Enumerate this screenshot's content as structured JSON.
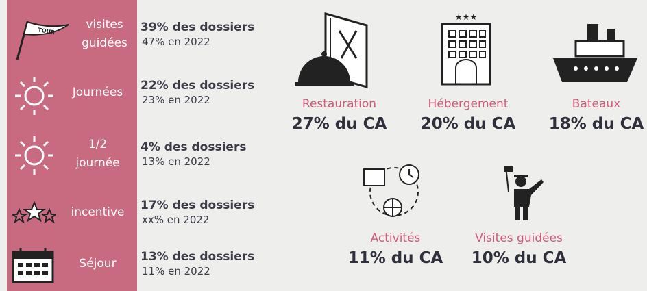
{
  "left_panel": {
    "items": [
      {
        "label_lines": [
          "visites",
          "guidées"
        ],
        "stat": "39% des dossiers",
        "previous": "47% en 2022"
      },
      {
        "label_lines": [
          "Journées"
        ],
        "stat": "22% des dossiers",
        "previous": "23% en 2022"
      },
      {
        "label_lines": [
          "1/2",
          "journée"
        ],
        "stat": "4% des dossiers",
        "previous": "13% en 2022"
      },
      {
        "label_lines": [
          "incentive"
        ],
        "stat": "17% des dossiers",
        "previous": "xx% en 2022"
      },
      {
        "label_lines": [
          "Séjour"
        ],
        "stat": "13% des dossiers",
        "previous": "11% en 2022"
      }
    ],
    "flag_text": "TOUR"
  },
  "categories": [
    {
      "label": "Restauration",
      "value": "27% du CA"
    },
    {
      "label": "Hébergement",
      "value": "20% du CA"
    },
    {
      "label": "Bateaux",
      "value": "18% du CA"
    },
    {
      "label": "Activités",
      "value": "11% du CA"
    },
    {
      "label": "Visites guidées",
      "value": "10% du CA"
    }
  ]
}
